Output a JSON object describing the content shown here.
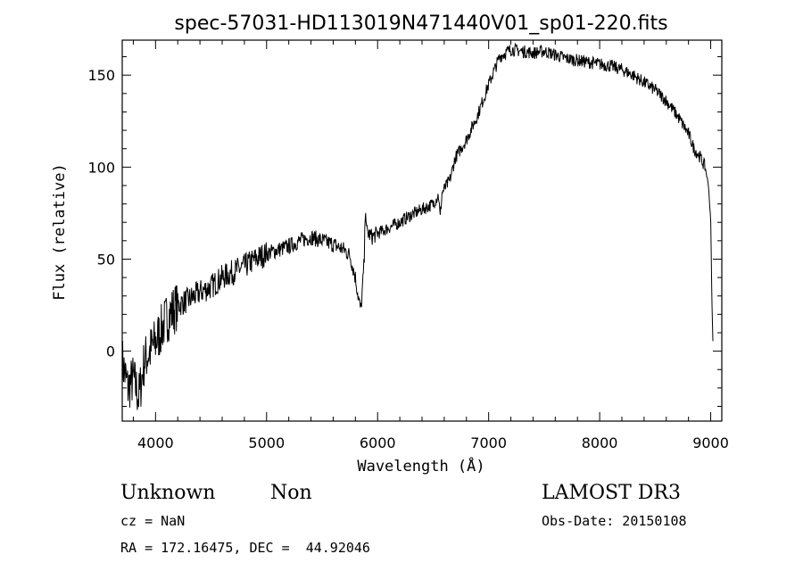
{
  "chart_data": {
    "type": "line",
    "title": "spec-57031-HD113019N471440V01_sp01-220.fits",
    "xlabel": "Wavelength (Å)",
    "ylabel": "Flux (relative)",
    "xlim": [
      3700,
      9100
    ],
    "ylim": [
      -38,
      169
    ],
    "xticks": [
      4000,
      5000,
      6000,
      7000,
      8000,
      9000
    ],
    "yticks": [
      0,
      50,
      100,
      150
    ],
    "grid": false,
    "series": [
      {
        "x": [
          3700,
          3750,
          3800,
          3850,
          3900,
          3950,
          4000,
          4100,
          4200,
          4300,
          4400,
          4500,
          4600,
          4700,
          4800,
          4900,
          5000,
          5100,
          5200,
          5300,
          5400,
          5500,
          5600,
          5700,
          5750,
          5800,
          5830,
          5850,
          5870,
          5880,
          5890,
          5900,
          5950,
          6000,
          6100,
          6200,
          6300,
          6400,
          6500,
          6550,
          6563,
          6580,
          6650,
          6700,
          6800,
          6900,
          7000,
          7100,
          7150,
          7200,
          7300,
          7400,
          7500,
          7600,
          7700,
          7800,
          7900,
          8000,
          8100,
          8200,
          8300,
          8400,
          8500,
          8600,
          8700,
          8800,
          8850,
          8900,
          8950,
          8980,
          9000,
          9010,
          9020
        ],
        "y": [
          -5,
          -20,
          -15,
          -25,
          -5,
          0,
          5,
          18,
          25,
          28,
          32,
          35,
          40,
          43,
          46,
          50,
          53,
          55,
          57,
          60,
          62,
          60,
          58,
          55,
          52,
          40,
          28,
          22,
          40,
          50,
          82,
          65,
          62,
          64,
          67,
          70,
          74,
          77,
          80,
          85,
          72,
          86,
          93,
          105,
          115,
          128,
          145,
          160,
          162,
          164,
          163,
          162,
          163,
          161,
          159,
          158,
          157,
          156,
          155,
          153,
          150,
          146,
          142,
          136,
          128,
          118,
          110,
          106,
          100,
          90,
          70,
          30,
          5
        ]
      }
    ],
    "annotations": {
      "object_class": "Unknown",
      "object_subclass": "Non",
      "survey": "LAMOST DR3",
      "redshift": "cz = NaN",
      "obs_date": "Obs-Date: 20150108",
      "coordinates": "RA = 172.16475, DEC =  44.92046"
    }
  }
}
